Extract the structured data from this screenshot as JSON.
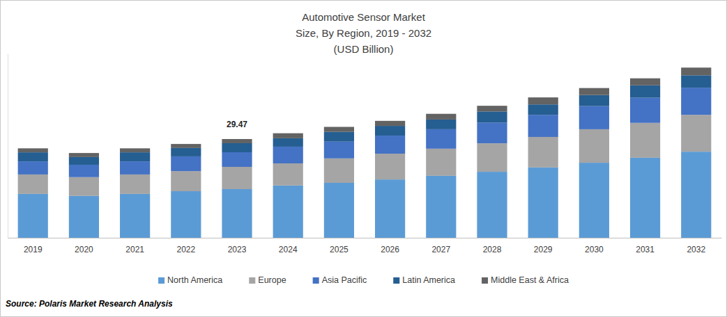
{
  "chart_data": {
    "type": "bar",
    "stacked": true,
    "title": [
      "Automotive Sensor Market",
      "Size, By Region, 2019 - 2032",
      "(USD Billion)"
    ],
    "source": "Source: Polaris Market Research Analysis",
    "categories": [
      "2019",
      "2020",
      "2021",
      "2022",
      "2023",
      "2024",
      "2025",
      "2026",
      "2027",
      "2028",
      "2029",
      "2030",
      "2031",
      "2032"
    ],
    "series": [
      {
        "name": "North America",
        "color": "#5b9bd5",
        "values": [
          13.1,
          12.5,
          13.1,
          13.9,
          14.53,
          15.6,
          16.4,
          17.4,
          18.5,
          19.7,
          21.0,
          22.4,
          23.9,
          25.7
        ]
      },
      {
        "name": "Europe",
        "color": "#a5a5a5",
        "values": [
          5.8,
          5.6,
          5.8,
          6.0,
          6.64,
          6.6,
          7.3,
          7.7,
          8.1,
          8.5,
          9.1,
          10.0,
          10.4,
          11.0
        ]
      },
      {
        "name": "Asia Pacific",
        "color": "#4472c4",
        "values": [
          3.9,
          3.7,
          3.9,
          4.4,
          4.36,
          5.0,
          5.0,
          5.4,
          5.8,
          6.2,
          6.6,
          6.9,
          7.5,
          8.1
        ]
      },
      {
        "name": "Latin America",
        "color": "#255e91",
        "values": [
          2.7,
          2.3,
          2.7,
          2.5,
          2.7,
          2.5,
          2.9,
          2.9,
          2.9,
          3.3,
          3.1,
          3.3,
          3.7,
          3.7
        ]
      },
      {
        "name": "Middle East & Africa",
        "color": "#636363",
        "values": [
          1.2,
          1.2,
          1.2,
          1.2,
          1.24,
          1.5,
          1.5,
          1.5,
          1.7,
          1.7,
          2.1,
          2.1,
          2.1,
          2.3
        ]
      }
    ],
    "annotations": [
      {
        "x": "2023",
        "y": 29.47,
        "text": "29.47"
      }
    ],
    "ylim": [
      0,
      55
    ],
    "yticks": [],
    "tick_labels": "x",
    "grid": false,
    "legend": "bottom"
  }
}
